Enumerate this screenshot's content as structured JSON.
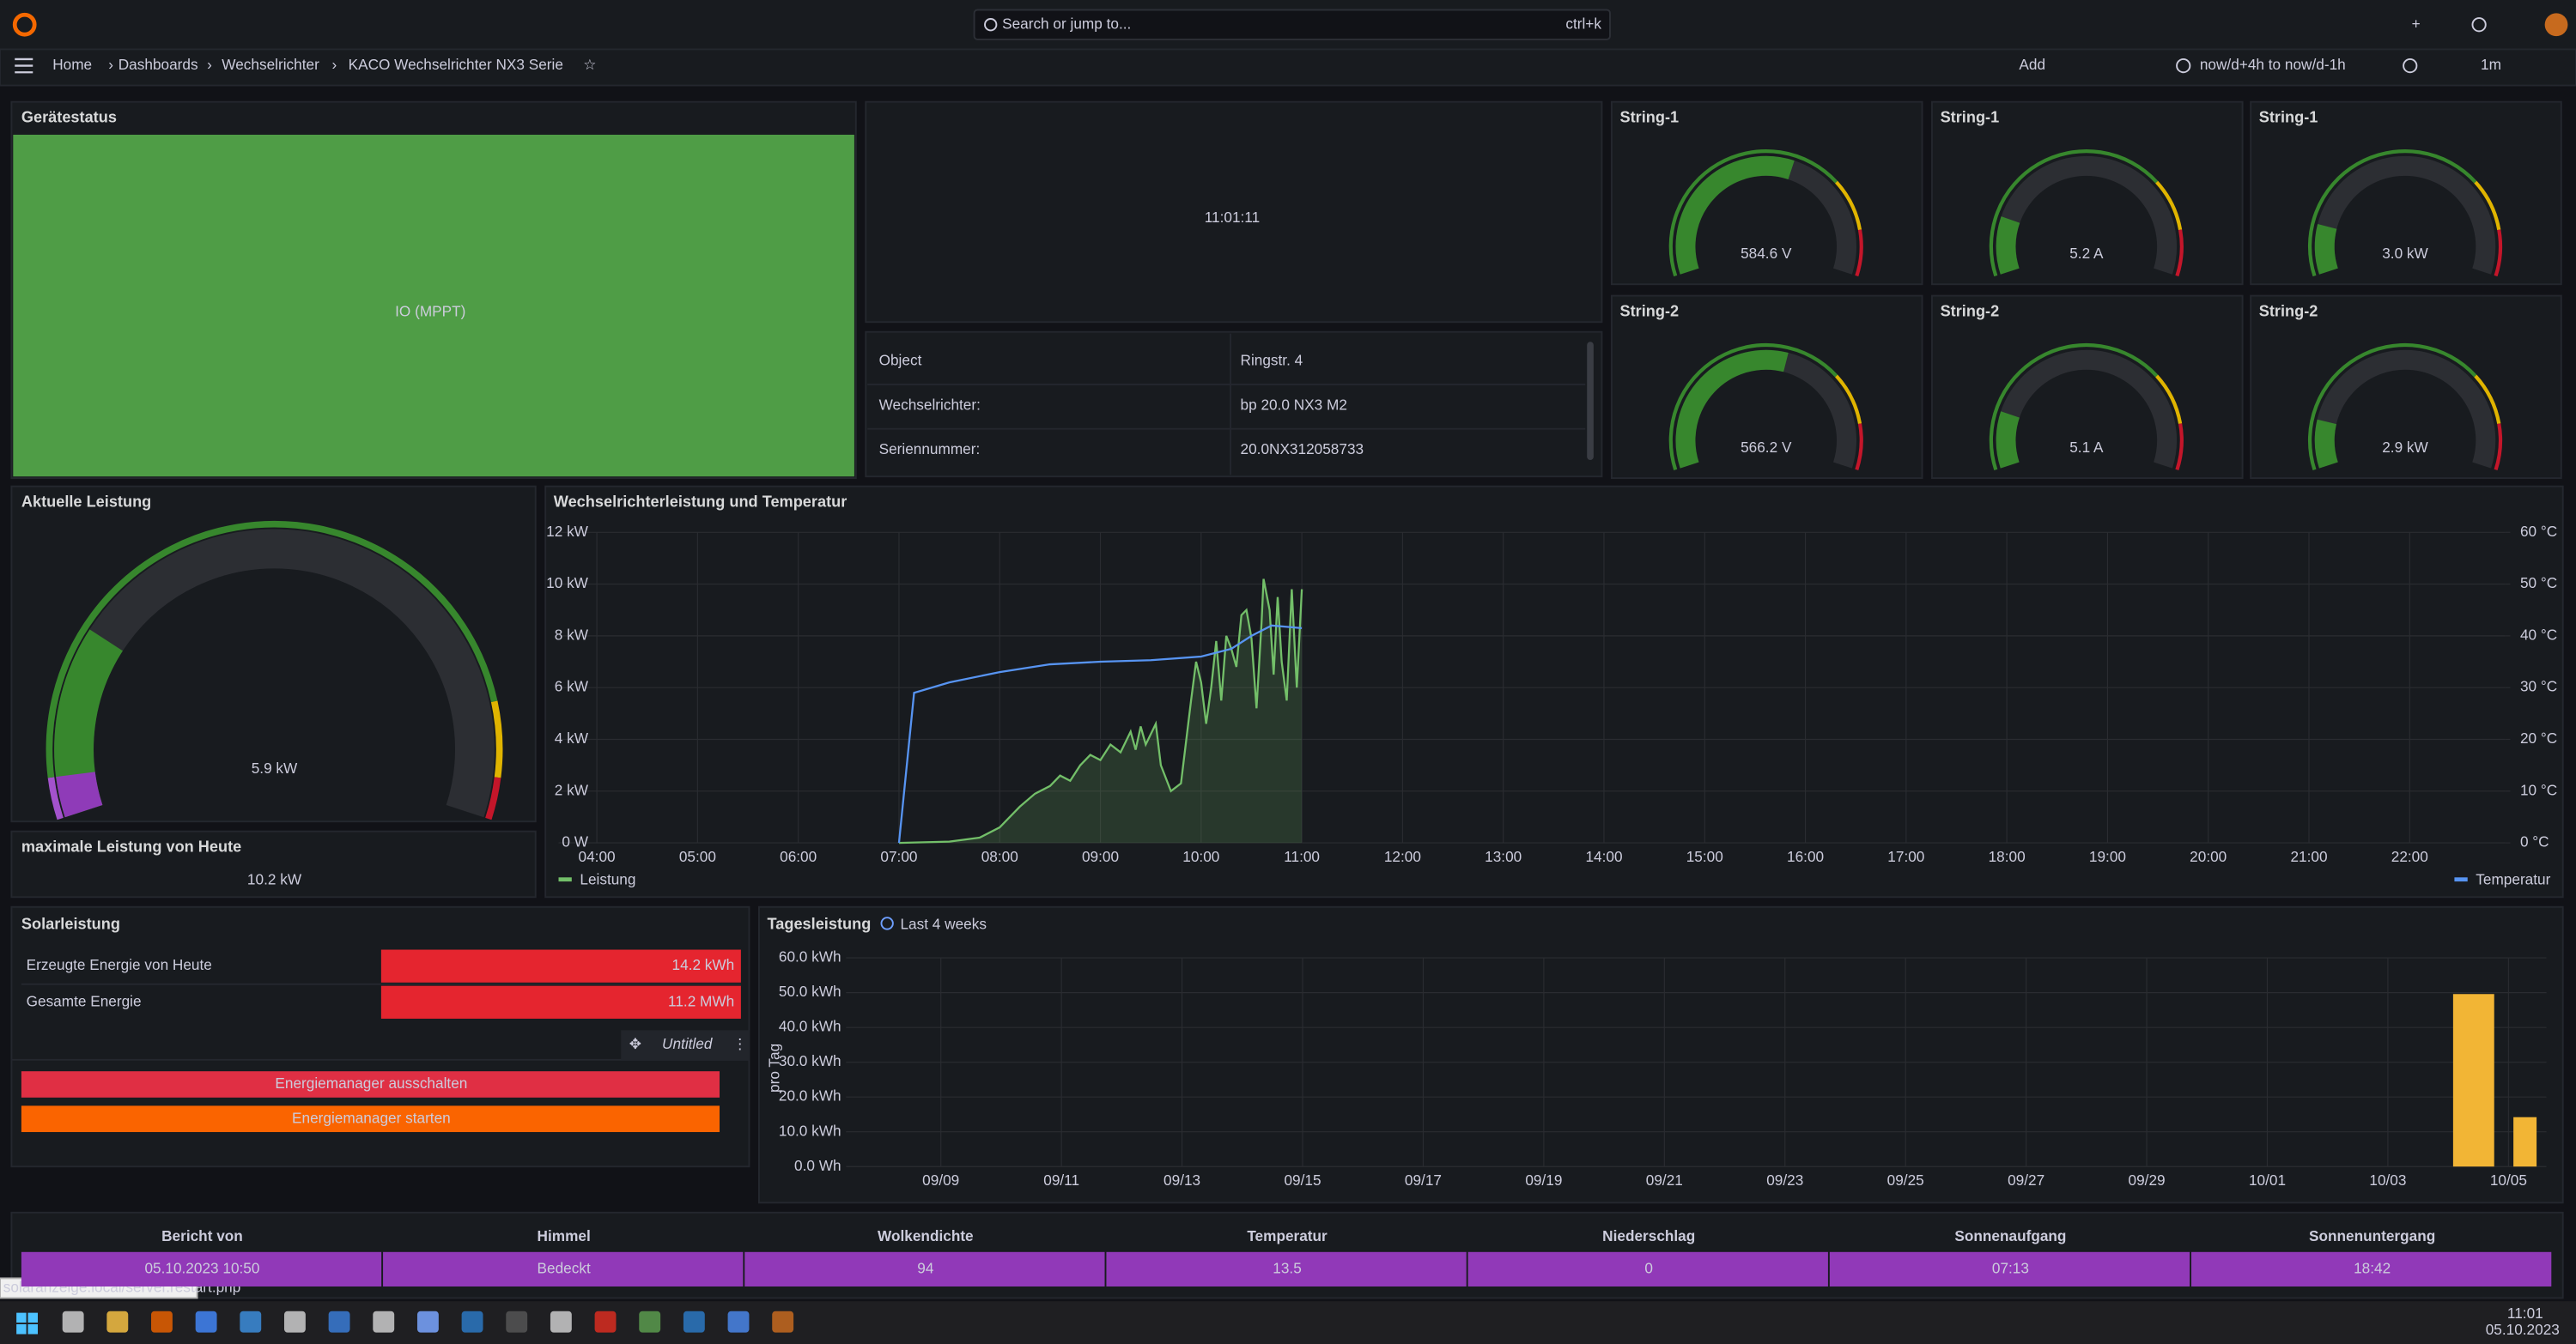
{
  "header": {
    "search": "Search or jump to...",
    "shortcut": "ctrl+k",
    "breadcrumbs": [
      "Home",
      "Dashboards",
      "Wechselrichter",
      "KACO Wechselrichter NX3 Serie"
    ],
    "add": "Add",
    "time_range": "now/d+4h to now/d-1h",
    "refresh": "1m"
  },
  "status": {
    "title": "Gerätestatus",
    "value": "IO (MPPT)"
  },
  "clock": {
    "value": "11:01:11"
  },
  "info": {
    "rows": [
      [
        "Object",
        "Ringstr. 4"
      ],
      [
        "Wechselrichter:",
        "bp 20.0 NX3 M2"
      ],
      [
        "Seriennummer:",
        "20.0NX312058733"
      ]
    ]
  },
  "gauges": [
    {
      "title": "String-1",
      "value": 584.6,
      "value_label": "584.6 V",
      "range": [
        0,
        1000
      ]
    },
    {
      "title": "String-1",
      "value": 5.2,
      "value_label": "5.2 A",
      "range": [
        0,
        30
      ]
    },
    {
      "title": "String-1",
      "value": 3.0,
      "value_label": "3.0 kW",
      "range": [
        0,
        20
      ]
    },
    {
      "title": "String-2",
      "value": 566.2,
      "value_label": "566.2 V",
      "range": [
        0,
        1000
      ]
    },
    {
      "title": "String-2",
      "value": 5.1,
      "value_label": "5.1 A",
      "range": [
        0,
        30
      ]
    },
    {
      "title": "String-2",
      "value": 2.9,
      "value_label": "2.9 kW",
      "range": [
        0,
        20
      ]
    }
  ],
  "current_power": {
    "title": "Aktuelle Leistung",
    "value": 5.9,
    "value_label": "5.9 kW",
    "range": [
      0,
      25
    ]
  },
  "max_power": {
    "title": "maximale Leistung von Heute",
    "value": "10.2 kW"
  },
  "power_chart": {
    "type": "line",
    "title": "Wechselrichterleistung und Temperatur",
    "grid": true,
    "xlim": [
      3.62,
      22.95
    ],
    "xticks": [
      {
        "value": 4,
        "label": "04:00"
      },
      {
        "value": 5,
        "label": "05:00"
      },
      {
        "value": 6,
        "label": "06:00"
      },
      {
        "value": 7,
        "label": "07:00"
      },
      {
        "value": 8,
        "label": "08:00"
      },
      {
        "value": 9,
        "label": "09:00"
      },
      {
        "value": 10,
        "label": "10:00"
      },
      {
        "value": 11,
        "label": "11:00"
      },
      {
        "value": 12,
        "label": "12:00"
      },
      {
        "value": 13,
        "label": "13:00"
      },
      {
        "value": 14,
        "label": "14:00"
      },
      {
        "value": 15,
        "label": "15:00"
      },
      {
        "value": 16,
        "label": "16:00"
      },
      {
        "value": 17,
        "label": "17:00"
      },
      {
        "value": 18,
        "label": "18:00"
      },
      {
        "value": 19,
        "label": "19:00"
      },
      {
        "value": 20,
        "label": "20:00"
      },
      {
        "value": 21,
        "label": "21:00"
      },
      {
        "value": 22,
        "label": "22:00"
      }
    ],
    "ylim": [
      0,
      12
    ],
    "yticks": [
      {
        "value": 0,
        "label": "0 W"
      },
      {
        "value": 2,
        "label": "2 kW"
      },
      {
        "value": 4,
        "label": "4 kW"
      },
      {
        "value": 6,
        "label": "6 kW"
      },
      {
        "value": 8,
        "label": "8 kW"
      },
      {
        "value": 10,
        "label": "10 kW"
      },
      {
        "value": 12,
        "label": "12 kW"
      }
    ],
    "y2lim": [
      0,
      60
    ],
    "y2ticks": [
      {
        "value": 0,
        "label": "0 °C"
      },
      {
        "value": 10,
        "label": "10 °C"
      },
      {
        "value": 20,
        "label": "20 °C"
      },
      {
        "value": 30,
        "label": "30 °C"
      },
      {
        "value": 40,
        "label": "40 °C"
      },
      {
        "value": 50,
        "label": "50 °C"
      },
      {
        "value": 60,
        "label": "60 °C"
      }
    ],
    "series": [
      {
        "name": "Leistung",
        "color": "#73bf69",
        "x": [
          7.0,
          7.5,
          7.8,
          8.0,
          8.1,
          8.2,
          8.35,
          8.5,
          8.6,
          8.7,
          8.8,
          8.9,
          9.0,
          9.1,
          9.2,
          9.3,
          9.35,
          9.4,
          9.45,
          9.55,
          9.6,
          9.7,
          9.8,
          9.9,
          9.95,
          10.0,
          10.05,
          10.1,
          10.15,
          10.2,
          10.25,
          10.3,
          10.35,
          10.4,
          10.45,
          10.5,
          10.55,
          10.6,
          10.62,
          10.68,
          10.72,
          10.76,
          10.8,
          10.85,
          10.9,
          10.95,
          11.0
        ],
        "values": [
          0,
          0.05,
          0.2,
          0.6,
          1.0,
          1.4,
          1.9,
          2.2,
          2.6,
          2.4,
          3.0,
          3.4,
          3.2,
          3.8,
          3.5,
          4.3,
          3.6,
          4.5,
          3.8,
          4.6,
          3.0,
          2.0,
          2.3,
          5.5,
          7.0,
          6.2,
          4.6,
          6.0,
          7.8,
          5.5,
          8.0,
          7.5,
          6.8,
          8.8,
          9.0,
          7.9,
          5.2,
          8.5,
          10.2,
          9.0,
          6.5,
          9.5,
          7.0,
          5.5,
          9.8,
          6.0,
          9.8
        ]
      },
      {
        "name": "Temperatur",
        "color": "#5794f2",
        "axis": "y2",
        "x": [
          7.0,
          7.15,
          7.5,
          8.0,
          8.5,
          9.0,
          9.5,
          10.0,
          10.3,
          10.5,
          10.7,
          11.0
        ],
        "values": [
          0,
          29,
          31,
          33,
          34.5,
          35,
          35.3,
          36,
          37.5,
          40,
          42,
          41.5
        ]
      }
    ]
  },
  "solar": {
    "title": "Solarleistung",
    "rows": [
      {
        "label": "Erzeugte Energie von Heute",
        "value": "14.2 kWh"
      },
      {
        "label": "Gesamte Energie",
        "value": "11.2 MWh"
      }
    ]
  },
  "controls": {
    "title": "Untitled",
    "buttons": [
      "Energiemanager ausschalten",
      "Energiemanager starten"
    ]
  },
  "daily_chart": {
    "type": "bar",
    "title": "Tagesleistung",
    "link": "Last 4 weeks",
    "ylabel": "pro Tag",
    "color": "#f2b535",
    "grid": true,
    "categories": [
      null,
      "09/09",
      null,
      "09/11",
      null,
      "09/13",
      null,
      "09/15",
      null,
      "09/17",
      null,
      "09/19",
      null,
      "09/21",
      null,
      "09/23",
      null,
      "09/25",
      null,
      "09/27",
      null,
      "09/29",
      null,
      "10/01",
      null,
      "10/03",
      null,
      "10/05"
    ],
    "values": [
      null,
      null,
      null,
      null,
      null,
      null,
      null,
      null,
      null,
      null,
      null,
      null,
      null,
      null,
      null,
      null,
      null,
      null,
      null,
      null,
      null,
      null,
      null,
      null,
      null,
      null,
      49.6,
      14.2
    ],
    "ylim": [
      0,
      60
    ],
    "yticks": [
      {
        "value": 0,
        "label": "0.0 Wh"
      },
      {
        "value": 10,
        "label": "10.0 kWh"
      },
      {
        "value": 20,
        "label": "20.0 kWh"
      },
      {
        "value": 30,
        "label": "30.0 kWh"
      },
      {
        "value": 40,
        "label": "40.0 kWh"
      },
      {
        "value": 50,
        "label": "50.0 kWh"
      },
      {
        "value": 60,
        "label": "60.0 kWh"
      }
    ]
  },
  "weather": {
    "headers": [
      "Bericht von",
      "Himmel",
      "Wolkendichte",
      "Temperatur",
      "Niederschlag",
      "Sonnenaufgang",
      "Sonnenuntergang"
    ],
    "rows": [
      [
        "05.10.2023 10:50",
        "Bedeckt",
        "94",
        "13.5",
        "0",
        "07:13",
        "18:42"
      ]
    ]
  },
  "statusbar": {
    "url": "solaranzeige.local/server.restart.php"
  },
  "taskbar": {
    "time": "11:01",
    "date": "05.10.2023"
  }
}
